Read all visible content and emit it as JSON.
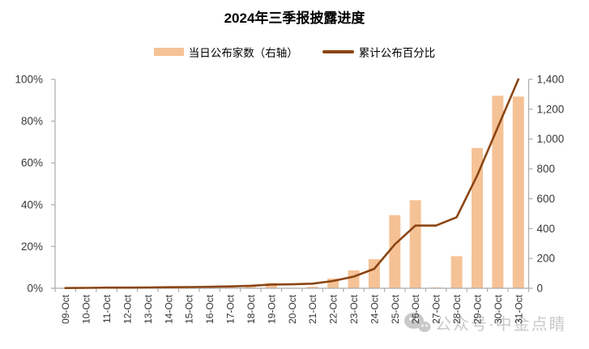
{
  "title": "2024年三季报披露进度",
  "legend": {
    "bar_label": "当日公布家数（右轴）",
    "line_label": "累计公布百分比"
  },
  "watermark": {
    "icon": "wechat-icon",
    "text": "公众号·中金点睛"
  },
  "colors": {
    "bar": "#F5C296",
    "line": "#8B4513",
    "axis": "#ABABAB",
    "axis_label": "#383838",
    "x_label": "#333333",
    "watermark": "#C9C9C9"
  },
  "chart_data": {
    "type": "bar+line",
    "title": "2024年三季报披露进度",
    "categories": [
      "09-Oct",
      "10-Oct",
      "11-Oct",
      "12-Oct",
      "13-Oct",
      "14-Oct",
      "15-Oct",
      "16-Oct",
      "17-Oct",
      "18-Oct",
      "19-Oct",
      "20-Oct",
      "21-Oct",
      "22-Oct",
      "23-Oct",
      "24-Oct",
      "25-Oct",
      "26-Oct",
      "27-Oct",
      "28-Oct",
      "29-Oct",
      "30-Oct",
      "31-Oct"
    ],
    "series": [
      {
        "name": "当日公布家数（右轴）",
        "type": "bar",
        "axis": "right",
        "color": "#F5C296",
        "values": [
          2,
          2,
          3,
          3,
          4,
          5,
          6,
          8,
          9,
          10,
          35,
          3,
          10,
          65,
          120,
          195,
          490,
          590,
          6,
          215,
          940,
          1290,
          1285
        ]
      },
      {
        "name": "累计公布百分比",
        "type": "line",
        "axis": "left",
        "unit": "%",
        "color": "#8B4513",
        "values": [
          0.1,
          0.2,
          0.3,
          0.3,
          0.4,
          0.5,
          0.6,
          0.7,
          0.9,
          1.2,
          1.8,
          1.9,
          2.2,
          3.5,
          5.6,
          9.3,
          21,
          30,
          30,
          34,
          54,
          77,
          100
        ]
      }
    ],
    "left_axis": {
      "ticks": [
        "0%",
        "20%",
        "40%",
        "60%",
        "80%",
        "100%"
      ],
      "min": 0,
      "max": 100
    },
    "right_axis": {
      "ticks": [
        "0",
        "200",
        "400",
        "600",
        "800",
        "1,000",
        "1,200",
        "1,400"
      ],
      "min": 0,
      "max": 1400
    },
    "grid": false,
    "legend_position": "top"
  }
}
